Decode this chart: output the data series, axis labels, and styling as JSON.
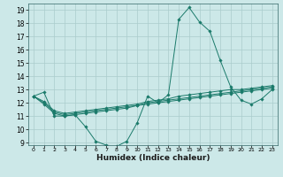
{
  "xlabel": "Humidex (Indice chaleur)",
  "ylabel": "",
  "background_color": "#cce8e8",
  "grid_color": "#aacccc",
  "line_color": "#1a7a6a",
  "xlim": [
    -0.5,
    23.5
  ],
  "ylim": [
    8.8,
    19.5
  ],
  "yticks": [
    9,
    10,
    11,
    12,
    13,
    14,
    15,
    16,
    17,
    18,
    19
  ],
  "xticks": [
    0,
    1,
    2,
    3,
    4,
    5,
    6,
    7,
    8,
    9,
    10,
    11,
    12,
    13,
    14,
    15,
    16,
    17,
    18,
    19,
    20,
    21,
    22,
    23
  ],
  "series": [
    [
      12.5,
      12.8,
      11.0,
      11.0,
      11.1,
      10.2,
      9.1,
      8.8,
      8.7,
      9.1,
      10.5,
      12.5,
      12.0,
      12.6,
      18.3,
      19.2,
      18.1,
      17.4,
      15.2,
      13.2,
      12.2,
      11.9,
      12.3,
      13.0
    ],
    [
      12.5,
      12.0,
      11.3,
      11.1,
      11.2,
      11.3,
      11.4,
      11.5,
      11.6,
      11.7,
      11.8,
      12.0,
      12.1,
      12.2,
      12.3,
      12.4,
      12.5,
      12.6,
      12.7,
      12.8,
      12.9,
      13.0,
      13.1,
      13.2
    ],
    [
      12.5,
      12.1,
      11.4,
      11.2,
      11.3,
      11.4,
      11.5,
      11.6,
      11.7,
      11.8,
      11.9,
      12.1,
      12.2,
      12.3,
      12.5,
      12.6,
      12.7,
      12.8,
      12.9,
      13.0,
      13.0,
      13.1,
      13.2,
      13.3
    ],
    [
      12.5,
      11.9,
      11.2,
      11.0,
      11.1,
      11.2,
      11.3,
      11.4,
      11.5,
      11.6,
      11.8,
      11.9,
      12.0,
      12.1,
      12.2,
      12.3,
      12.4,
      12.5,
      12.6,
      12.7,
      12.8,
      12.9,
      13.0,
      13.1
    ]
  ],
  "xtick_fontsize": 4.5,
  "ytick_fontsize": 5.5,
  "xlabel_fontsize": 6.5
}
